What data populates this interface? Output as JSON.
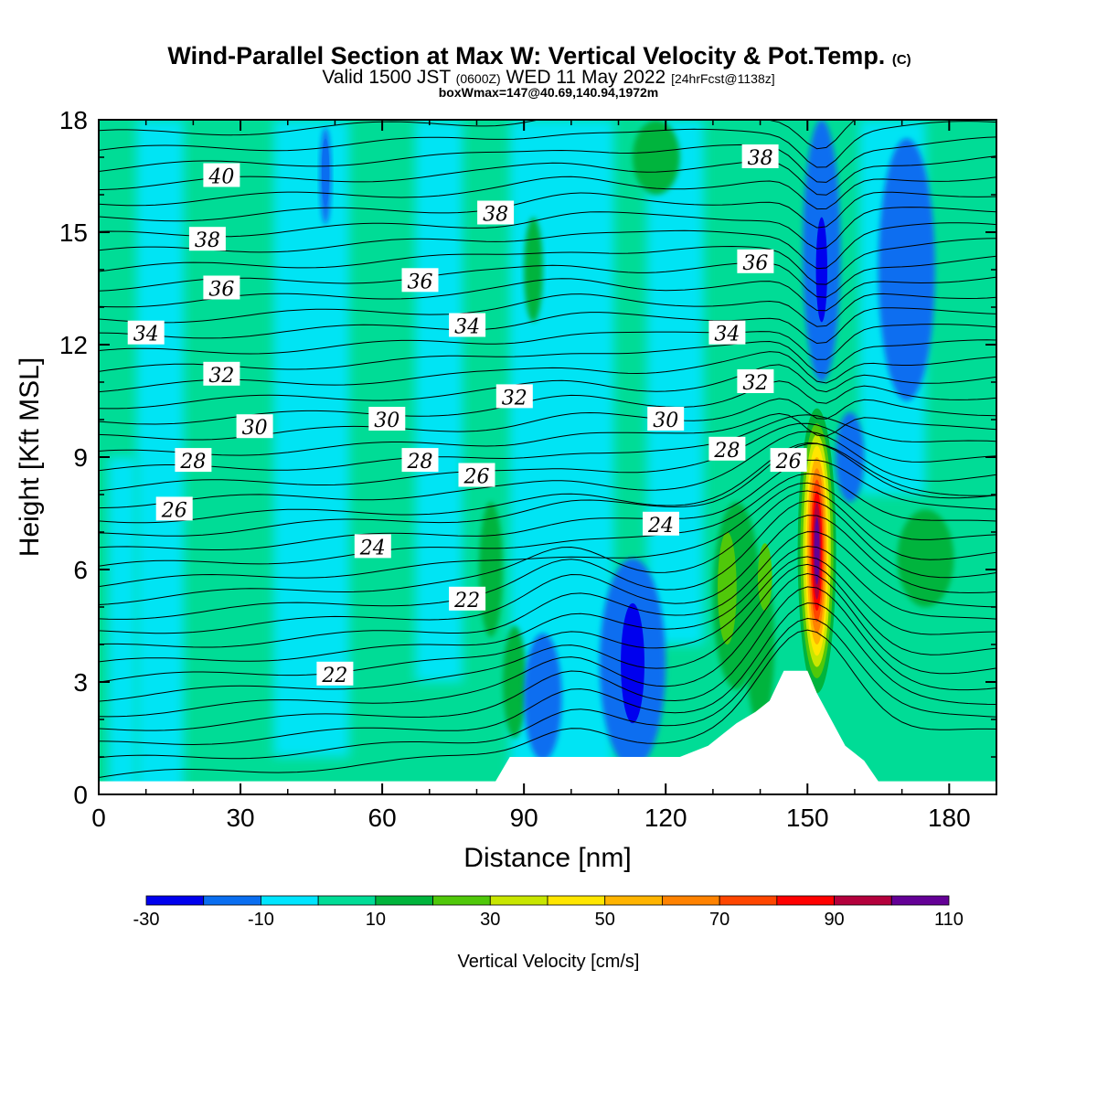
{
  "chart_data": {
    "type": "heatmap",
    "title": "Wind-Parallel Section at Max W: Vertical Velocity & Pot.Temp.",
    "copyright_mark": "(C)",
    "subtitle_prefix": "Valid 1500 JST",
    "subtitle_small_1": "(0600Z)",
    "subtitle_mid": "WED 11 May 2022",
    "subtitle_small_2": "[24hrFcst@1138z]",
    "subtitle_2": "boxWmax=147@40.69,140.94,1972m",
    "xlabel": "Distance [nm]",
    "ylabel": "Height [Kft MSL]",
    "xlim": [
      0,
      190
    ],
    "ylim": [
      0,
      18
    ],
    "x_ticks": [
      0,
      30,
      60,
      90,
      120,
      150,
      180
    ],
    "y_ticks": [
      0,
      3,
      6,
      9,
      12,
      15,
      18
    ],
    "colorbar": {
      "label": "Vertical Velocity [cm/s]",
      "colors": [
        "#0000ee",
        "#0a6ef0",
        "#00e5ff",
        "#00dc96",
        "#00b43c",
        "#50c80a",
        "#c8e600",
        "#ffe600",
        "#ffb400",
        "#ff8200",
        "#ff4600",
        "#ff0000",
        "#b4003c",
        "#640096"
      ],
      "ticks": [
        "-30",
        "-10",
        "10",
        "30",
        "50",
        "70",
        "90",
        "110"
      ]
    },
    "vertical_velocity_features": [
      {
        "x": 152,
        "y": 6.5,
        "w_max": 110,
        "kind": "updraft"
      },
      {
        "x": 113,
        "y": 3.5,
        "w_min": -30,
        "kind": "downdraft"
      },
      {
        "x": 94,
        "y": 2.5,
        "w_min": -20,
        "kind": "downdraft"
      },
      {
        "x": 153,
        "y": 15,
        "w_min": -30,
        "kind": "downdraft"
      },
      {
        "x": 170,
        "y": 14,
        "w_min": -20,
        "kind": "downdraft"
      },
      {
        "x": 48,
        "y": 16.5,
        "w_min": -20,
        "kind": "downdraft"
      },
      {
        "x": 135,
        "y": 5.5,
        "w_max": 30,
        "kind": "updraft"
      },
      {
        "x": 93,
        "y": 14,
        "w_max": 20,
        "kind": "updraft"
      },
      {
        "x": 83,
        "y": 6,
        "w_max": 20,
        "kind": "updraft"
      },
      {
        "x": 175,
        "y": 6.3,
        "w_max": 20,
        "kind": "updraft"
      }
    ],
    "terrain_height_kft": {
      "x": [
        0,
        84,
        87,
        108,
        123,
        129,
        132,
        135,
        139,
        142,
        145,
        150,
        152,
        155,
        158,
        162,
        165,
        190
      ],
      "y": [
        0.35,
        0.35,
        1.0,
        1.0,
        1.0,
        1.3,
        1.6,
        1.9,
        2.2,
        2.5,
        3.3,
        3.3,
        2.7,
        2.0,
        1.3,
        0.9,
        0.35,
        0.35
      ]
    },
    "contour_labels": [
      {
        "value": "40",
        "x": 26,
        "y": 16.5
      },
      {
        "value": "38",
        "x": 23,
        "y": 14.8
      },
      {
        "value": "36",
        "x": 26,
        "y": 13.5
      },
      {
        "value": "34",
        "x": 10,
        "y": 12.3
      },
      {
        "value": "32",
        "x": 26,
        "y": 11.2
      },
      {
        "value": "30",
        "x": 33,
        "y": 9.8
      },
      {
        "value": "28",
        "x": 20,
        "y": 8.9
      },
      {
        "value": "26",
        "x": 16,
        "y": 7.6
      },
      {
        "value": "24",
        "x": 58,
        "y": 6.6
      },
      {
        "value": "22",
        "x": 50,
        "y": 3.2
      },
      {
        "value": "22",
        "x": 78,
        "y": 5.2
      },
      {
        "value": "26",
        "x": 80,
        "y": 8.5
      },
      {
        "value": "28",
        "x": 68,
        "y": 8.9
      },
      {
        "value": "30",
        "x": 61,
        "y": 10.0
      },
      {
        "value": "36",
        "x": 68,
        "y": 13.7
      },
      {
        "value": "34",
        "x": 78,
        "y": 12.5
      },
      {
        "value": "32",
        "x": 88,
        "y": 10.6
      },
      {
        "value": "38",
        "x": 84,
        "y": 15.5
      },
      {
        "value": "24",
        "x": 119,
        "y": 7.2
      },
      {
        "value": "30",
        "x": 120,
        "y": 10.0
      },
      {
        "value": "28",
        "x": 133,
        "y": 9.2
      },
      {
        "value": "26",
        "x": 146,
        "y": 8.9
      },
      {
        "value": "34",
        "x": 133,
        "y": 12.3
      },
      {
        "value": "32",
        "x": 139,
        "y": 11.0
      },
      {
        "value": "36",
        "x": 139,
        "y": 14.2
      },
      {
        "value": "38",
        "x": 140,
        "y": 17.0
      }
    ],
    "theta_levels": [
      20,
      22,
      24,
      26,
      28,
      30,
      32,
      34,
      36,
      38,
      40
    ]
  }
}
